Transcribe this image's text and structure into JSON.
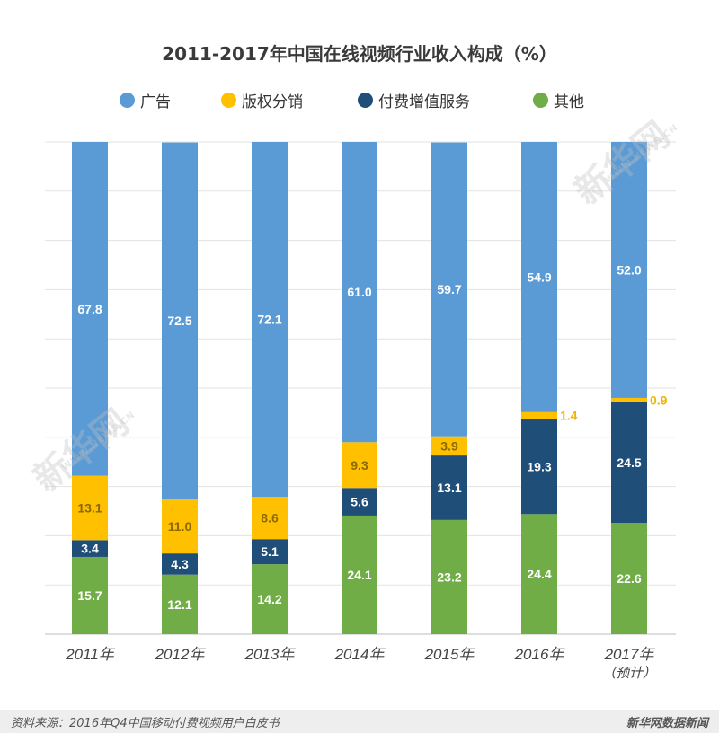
{
  "chart_data": {
    "type": "bar",
    "stacked": true,
    "title": "2011-2017年中国在线视频行业收入构成（%）",
    "categories": [
      "2011年",
      "2012年",
      "2013年",
      "2014年",
      "2015年",
      "2016年",
      "2017年"
    ],
    "category_notes": [
      "",
      "",
      "",
      "",
      "",
      "",
      "（预计）"
    ],
    "ylim": [
      0,
      100
    ],
    "grid": true,
    "legend_position": "top",
    "series": [
      {
        "name": "其他",
        "color": "#70ad47",
        "label_color": "#ffffff",
        "values": [
          15.7,
          12.1,
          14.2,
          24.1,
          23.2,
          24.4,
          22.6
        ]
      },
      {
        "name": "付费增值服务",
        "color": "#1f4e79",
        "label_color": "#ffffff",
        "values": [
          3.4,
          4.3,
          5.1,
          5.6,
          13.1,
          19.3,
          24.5
        ]
      },
      {
        "name": "版权分销",
        "color": "#ffc000",
        "label_color": "#8a6a00",
        "values": [
          13.1,
          11.0,
          8.6,
          9.3,
          3.9,
          1.4,
          0.9
        ]
      },
      {
        "name": "广告",
        "color": "#5b9bd5",
        "label_color": "#ffffff",
        "values": [
          67.8,
          72.5,
          72.1,
          61.0,
          59.7,
          54.9,
          52.0
        ]
      }
    ],
    "outside_label_color": "#f0b400"
  },
  "legend": {
    "items": [
      {
        "label": "广告",
        "color": "#5b9bd5"
      },
      {
        "label": "版权分销",
        "color": "#ffc000"
      },
      {
        "label": "付费增值服务",
        "color": "#1f4e79"
      },
      {
        "label": "其他",
        "color": "#70ad47"
      }
    ]
  },
  "watermark": {
    "big": "新华网",
    "small": "WWW.NEWS.CN"
  },
  "footer": {
    "source": "资料来源：2016年Q4中国移动付费视频用户白皮书",
    "brand": "新华网数据新闻"
  }
}
